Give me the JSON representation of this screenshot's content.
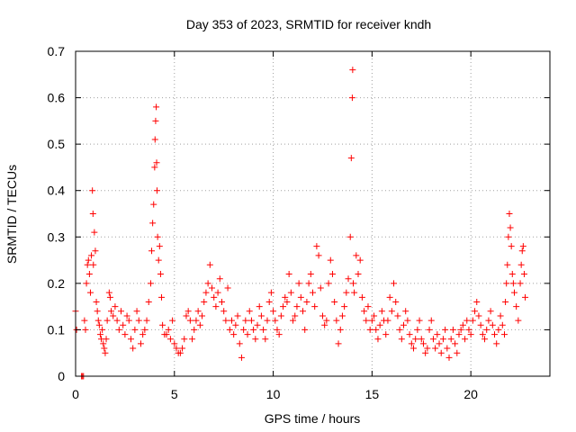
{
  "chart_data": {
    "type": "scatter",
    "title": "Day 353 of 2023, SRMTID for receiver kndh",
    "xlabel": "GPS time / hours",
    "ylabel": "SRMTID / TECUs",
    "xlim": [
      0,
      24
    ],
    "ylim": [
      0,
      0.7
    ],
    "xticks": [
      "0",
      "5",
      "10",
      "15",
      "20"
    ],
    "xtick_values": [
      0,
      5,
      10,
      15,
      20
    ],
    "yticks": [
      "0",
      "0.1",
      "0.2",
      "0.3",
      "0.4",
      "0.5",
      "0.6",
      "0.7"
    ],
    "ytick_values": [
      0,
      0.1,
      0.2,
      0.3,
      0.4,
      0.5,
      0.6,
      0.7
    ],
    "grid": true,
    "marker": "+",
    "series": [
      {
        "name": "SRMTID",
        "color": "#ff0000",
        "points": [
          [
            0.0,
            0.14
          ],
          [
            0.05,
            0.1
          ],
          [
            0.3,
            0.0
          ],
          [
            0.35,
            0.0
          ],
          [
            0.4,
            0.0
          ],
          [
            0.45,
            0.12
          ],
          [
            0.5,
            0.1
          ],
          [
            0.55,
            0.2
          ],
          [
            0.6,
            0.24
          ],
          [
            0.65,
            0.25
          ],
          [
            0.7,
            0.22
          ],
          [
            0.75,
            0.18
          ],
          [
            0.8,
            0.26
          ],
          [
            0.85,
            0.4
          ],
          [
            0.88,
            0.35
          ],
          [
            0.9,
            0.24
          ],
          [
            0.95,
            0.31
          ],
          [
            1.0,
            0.27
          ],
          [
            1.05,
            0.16
          ],
          [
            1.1,
            0.14
          ],
          [
            1.15,
            0.12
          ],
          [
            1.2,
            0.11
          ],
          [
            1.25,
            0.09
          ],
          [
            1.3,
            0.08
          ],
          [
            1.35,
            0.1
          ],
          [
            1.4,
            0.07
          ],
          [
            1.45,
            0.06
          ],
          [
            1.5,
            0.05
          ],
          [
            1.55,
            0.08
          ],
          [
            1.6,
            0.12
          ],
          [
            1.7,
            0.18
          ],
          [
            1.75,
            0.17
          ],
          [
            1.8,
            0.14
          ],
          [
            1.9,
            0.13
          ],
          [
            2.0,
            0.15
          ],
          [
            2.1,
            0.12
          ],
          [
            2.2,
            0.1
          ],
          [
            2.3,
            0.14
          ],
          [
            2.4,
            0.11
          ],
          [
            2.5,
            0.09
          ],
          [
            2.6,
            0.13
          ],
          [
            2.7,
            0.12
          ],
          [
            2.8,
            0.08
          ],
          [
            2.9,
            0.06
          ],
          [
            3.0,
            0.1
          ],
          [
            3.1,
            0.14
          ],
          [
            3.2,
            0.12
          ],
          [
            3.3,
            0.07
          ],
          [
            3.4,
            0.09
          ],
          [
            3.5,
            0.1
          ],
          [
            3.6,
            0.12
          ],
          [
            3.7,
            0.16
          ],
          [
            3.8,
            0.2
          ],
          [
            3.85,
            0.27
          ],
          [
            3.9,
            0.33
          ],
          [
            3.95,
            0.37
          ],
          [
            4.0,
            0.45
          ],
          [
            4.02,
            0.51
          ],
          [
            4.05,
            0.55
          ],
          [
            4.08,
            0.58
          ],
          [
            4.1,
            0.46
          ],
          [
            4.12,
            0.4
          ],
          [
            4.15,
            0.3
          ],
          [
            4.2,
            0.25
          ],
          [
            4.25,
            0.28
          ],
          [
            4.3,
            0.22
          ],
          [
            4.35,
            0.17
          ],
          [
            4.4,
            0.11
          ],
          [
            4.5,
            0.09
          ],
          [
            4.6,
            0.09
          ],
          [
            4.7,
            0.1
          ],
          [
            4.8,
            0.08
          ],
          [
            4.9,
            0.12
          ],
          [
            5.0,
            0.07
          ],
          [
            5.1,
            0.06
          ],
          [
            5.2,
            0.05
          ],
          [
            5.3,
            0.05
          ],
          [
            5.4,
            0.06
          ],
          [
            5.5,
            0.08
          ],
          [
            5.6,
            0.13
          ],
          [
            5.7,
            0.14
          ],
          [
            5.8,
            0.12
          ],
          [
            5.9,
            0.08
          ],
          [
            6.0,
            0.1
          ],
          [
            6.1,
            0.12
          ],
          [
            6.2,
            0.14
          ],
          [
            6.3,
            0.11
          ],
          [
            6.4,
            0.13
          ],
          [
            6.5,
            0.16
          ],
          [
            6.6,
            0.18
          ],
          [
            6.7,
            0.2
          ],
          [
            6.8,
            0.24
          ],
          [
            6.9,
            0.19
          ],
          [
            7.0,
            0.17
          ],
          [
            7.1,
            0.15
          ],
          [
            7.2,
            0.18
          ],
          [
            7.3,
            0.21
          ],
          [
            7.4,
            0.16
          ],
          [
            7.5,
            0.14
          ],
          [
            7.6,
            0.12
          ],
          [
            7.7,
            0.19
          ],
          [
            7.8,
            0.1
          ],
          [
            7.9,
            0.12
          ],
          [
            8.0,
            0.09
          ],
          [
            8.1,
            0.11
          ],
          [
            8.2,
            0.13
          ],
          [
            8.3,
            0.07
          ],
          [
            8.4,
            0.04
          ],
          [
            8.5,
            0.1
          ],
          [
            8.6,
            0.12
          ],
          [
            8.7,
            0.09
          ],
          [
            8.8,
            0.14
          ],
          [
            8.9,
            0.12
          ],
          [
            9.0,
            0.1
          ],
          [
            9.1,
            0.08
          ],
          [
            9.2,
            0.11
          ],
          [
            9.3,
            0.15
          ],
          [
            9.4,
            0.13
          ],
          [
            9.5,
            0.1
          ],
          [
            9.6,
            0.08
          ],
          [
            9.7,
            0.12
          ],
          [
            9.8,
            0.16
          ],
          [
            9.9,
            0.18
          ],
          [
            10.0,
            0.14
          ],
          [
            10.1,
            0.12
          ],
          [
            10.2,
            0.1
          ],
          [
            10.3,
            0.09
          ],
          [
            10.4,
            0.13
          ],
          [
            10.5,
            0.15
          ],
          [
            10.6,
            0.17
          ],
          [
            10.7,
            0.16
          ],
          [
            10.8,
            0.22
          ],
          [
            10.9,
            0.18
          ],
          [
            11.0,
            0.12
          ],
          [
            11.1,
            0.13
          ],
          [
            11.2,
            0.15
          ],
          [
            11.3,
            0.2
          ],
          [
            11.4,
            0.17
          ],
          [
            11.5,
            0.14
          ],
          [
            11.6,
            0.1
          ],
          [
            11.7,
            0.16
          ],
          [
            11.8,
            0.2
          ],
          [
            11.9,
            0.22
          ],
          [
            12.0,
            0.18
          ],
          [
            12.1,
            0.15
          ],
          [
            12.2,
            0.28
          ],
          [
            12.3,
            0.26
          ],
          [
            12.4,
            0.19
          ],
          [
            12.5,
            0.13
          ],
          [
            12.6,
            0.11
          ],
          [
            12.7,
            0.12
          ],
          [
            12.8,
            0.2
          ],
          [
            12.9,
            0.25
          ],
          [
            13.0,
            0.22
          ],
          [
            13.1,
            0.16
          ],
          [
            13.2,
            0.12
          ],
          [
            13.3,
            0.07
          ],
          [
            13.4,
            0.1
          ],
          [
            13.5,
            0.13
          ],
          [
            13.6,
            0.15
          ],
          [
            13.7,
            0.18
          ],
          [
            13.8,
            0.21
          ],
          [
            13.9,
            0.3
          ],
          [
            13.95,
            0.47
          ],
          [
            14.0,
            0.6
          ],
          [
            14.02,
            0.66
          ],
          [
            14.05,
            0.2
          ],
          [
            14.1,
            0.18
          ],
          [
            14.2,
            0.26
          ],
          [
            14.3,
            0.22
          ],
          [
            14.4,
            0.25
          ],
          [
            14.5,
            0.17
          ],
          [
            14.6,
            0.14
          ],
          [
            14.7,
            0.12
          ],
          [
            14.8,
            0.15
          ],
          [
            14.9,
            0.1
          ],
          [
            15.0,
            0.12
          ],
          [
            15.1,
            0.13
          ],
          [
            15.2,
            0.1
          ],
          [
            15.3,
            0.08
          ],
          [
            15.4,
            0.11
          ],
          [
            15.5,
            0.14
          ],
          [
            15.6,
            0.12
          ],
          [
            15.7,
            0.09
          ],
          [
            15.8,
            0.12
          ],
          [
            15.9,
            0.17
          ],
          [
            16.0,
            0.14
          ],
          [
            16.1,
            0.2
          ],
          [
            16.2,
            0.16
          ],
          [
            16.3,
            0.13
          ],
          [
            16.4,
            0.1
          ],
          [
            16.5,
            0.08
          ],
          [
            16.6,
            0.11
          ],
          [
            16.7,
            0.14
          ],
          [
            16.8,
            0.12
          ],
          [
            16.9,
            0.09
          ],
          [
            17.0,
            0.07
          ],
          [
            17.1,
            0.06
          ],
          [
            17.2,
            0.08
          ],
          [
            17.3,
            0.1
          ],
          [
            17.4,
            0.12
          ],
          [
            17.5,
            0.08
          ],
          [
            17.6,
            0.07
          ],
          [
            17.7,
            0.05
          ],
          [
            17.8,
            0.06
          ],
          [
            17.9,
            0.1
          ],
          [
            18.0,
            0.12
          ],
          [
            18.1,
            0.08
          ],
          [
            18.2,
            0.06
          ],
          [
            18.3,
            0.09
          ],
          [
            18.4,
            0.07
          ],
          [
            18.5,
            0.05
          ],
          [
            18.6,
            0.08
          ],
          [
            18.7,
            0.1
          ],
          [
            18.8,
            0.06
          ],
          [
            18.9,
            0.04
          ],
          [
            19.0,
            0.08
          ],
          [
            19.1,
            0.1
          ],
          [
            19.2,
            0.07
          ],
          [
            19.3,
            0.05
          ],
          [
            19.4,
            0.09
          ],
          [
            19.5,
            0.1
          ],
          [
            19.6,
            0.11
          ],
          [
            19.7,
            0.08
          ],
          [
            19.8,
            0.12
          ],
          [
            19.9,
            0.1
          ],
          [
            20.0,
            0.09
          ],
          [
            20.1,
            0.12
          ],
          [
            20.2,
            0.14
          ],
          [
            20.3,
            0.16
          ],
          [
            20.4,
            0.13
          ],
          [
            20.5,
            0.11
          ],
          [
            20.6,
            0.09
          ],
          [
            20.7,
            0.08
          ],
          [
            20.8,
            0.1
          ],
          [
            20.9,
            0.12
          ],
          [
            21.0,
            0.14
          ],
          [
            21.1,
            0.11
          ],
          [
            21.2,
            0.09
          ],
          [
            21.3,
            0.07
          ],
          [
            21.4,
            0.1
          ],
          [
            21.5,
            0.13
          ],
          [
            21.6,
            0.11
          ],
          [
            21.7,
            0.09
          ],
          [
            21.75,
            0.16
          ],
          [
            21.8,
            0.2
          ],
          [
            21.85,
            0.24
          ],
          [
            21.9,
            0.3
          ],
          [
            21.95,
            0.35
          ],
          [
            22.0,
            0.32
          ],
          [
            22.05,
            0.28
          ],
          [
            22.1,
            0.22
          ],
          [
            22.15,
            0.2
          ],
          [
            22.2,
            0.18
          ],
          [
            22.3,
            0.15
          ],
          [
            22.4,
            0.12
          ],
          [
            22.5,
            0.2
          ],
          [
            22.55,
            0.24
          ],
          [
            22.6,
            0.27
          ],
          [
            22.65,
            0.28
          ],
          [
            22.7,
            0.22
          ],
          [
            22.75,
            0.17
          ]
        ]
      }
    ]
  }
}
